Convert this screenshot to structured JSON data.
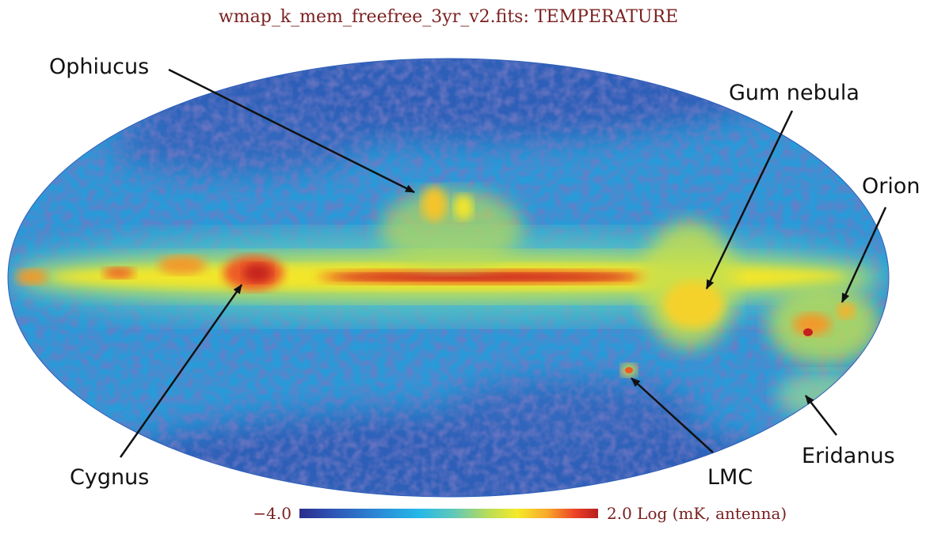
{
  "map": {
    "title": "wmap_k_mem_freefree_3yr_v2.fits: TEMPERATURE",
    "projection": "mollweide",
    "labels": {
      "ophiucus": "Ophiucus",
      "gum_nebula": "Gum nebula",
      "orion": "Orion",
      "cygnus": "Cygnus",
      "lmc": "LMC",
      "eridanus": "Eridanus"
    },
    "colorbar": {
      "min_label": "−4.0",
      "max_label": "2.0 Log (mK, antenna)",
      "colormap": [
        "#2b2e8c",
        "#2f58b8",
        "#2a8fd8",
        "#25b8e8",
        "#62c9b8",
        "#b8dc58",
        "#f5ea2a",
        "#f7a82a",
        "#ee4426",
        "#b81e1e"
      ]
    },
    "colors": {
      "title": "#7a1f1f",
      "labels": "#111111",
      "background": "#ffffff"
    }
  }
}
